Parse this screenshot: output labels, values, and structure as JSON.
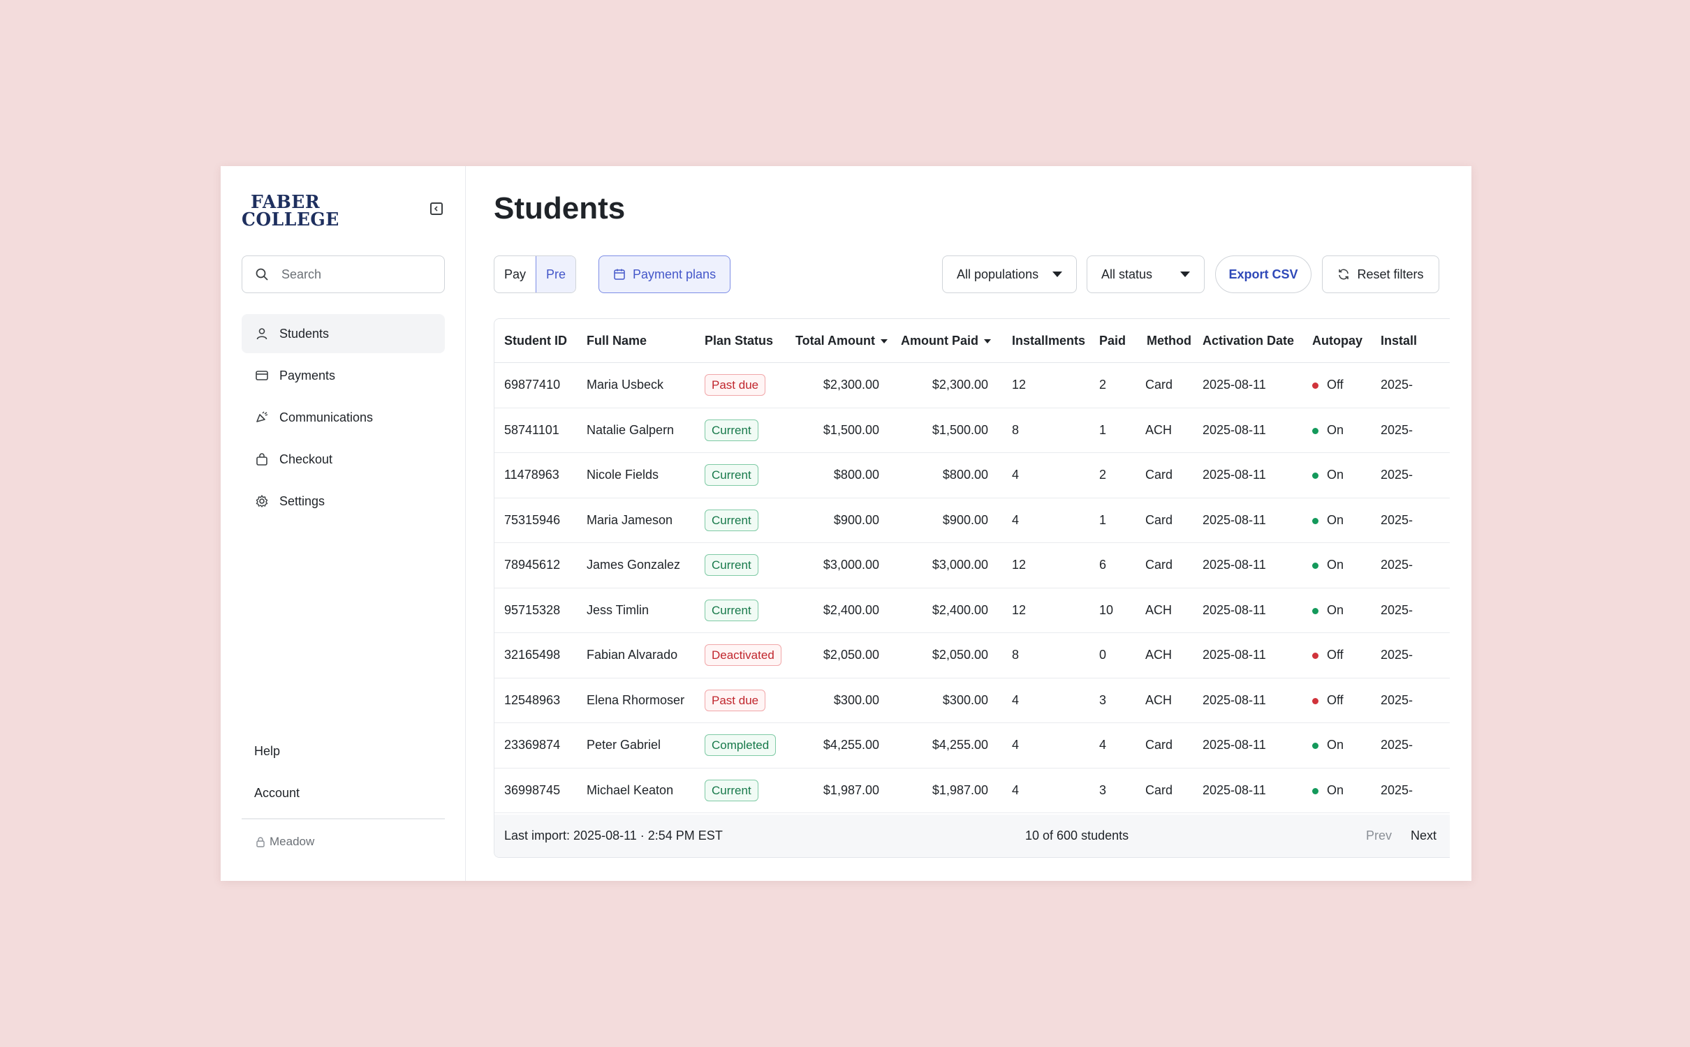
{
  "brand": {
    "logo_line1": "FABER",
    "logo_line2": "COLLEGE",
    "logo_color": "#1e2f5e"
  },
  "sidebar": {
    "search_placeholder": "Search",
    "nav": [
      {
        "label": "Students",
        "icon": "user-icon",
        "active": true
      },
      {
        "label": "Payments",
        "icon": "credit-card-icon"
      },
      {
        "label": "Communications",
        "icon": "megaphone-icon"
      },
      {
        "label": "Checkout",
        "icon": "shopping-bag-icon"
      },
      {
        "label": "Settings",
        "icon": "gear-icon"
      }
    ],
    "help": "Help",
    "account": "Account",
    "workspace": "Meadow"
  },
  "main": {
    "title": "Students",
    "segment": {
      "pay": "Pay",
      "pre": "Pre"
    },
    "plans_button": "Payment plans",
    "filter_population": "All populations",
    "filter_status": "All status",
    "export": "Export CSV",
    "reset": "Reset filters"
  },
  "table": {
    "columns": [
      "Student ID",
      "Full Name",
      "Plan Status",
      "Total Amount",
      "Amount Paid",
      "Installments",
      "Paid",
      "Method",
      "Activation Date",
      "Autopay",
      "Install"
    ],
    "rows": [
      {
        "id": "69877410",
        "name": "Maria Usbeck",
        "status": "Past due",
        "total": "$2,300.00",
        "paid_amt": "$2,300.00",
        "inst": "12",
        "paid": "2",
        "method": "Card",
        "date": "2025-08-11",
        "autopay": "Off",
        "next": "2025-"
      },
      {
        "id": "58741101",
        "name": "Natalie Galpern",
        "status": "Current",
        "total": "$1,500.00",
        "paid_amt": "$1,500.00",
        "inst": "8",
        "paid": "1",
        "method": "ACH",
        "date": "2025-08-11",
        "autopay": "On",
        "next": "2025-"
      },
      {
        "id": "11478963",
        "name": "Nicole Fields",
        "status": "Current",
        "total": "$800.00",
        "paid_amt": "$800.00",
        "inst": "4",
        "paid": "2",
        "method": "Card",
        "date": "2025-08-11",
        "autopay": "On",
        "next": "2025-"
      },
      {
        "id": "75315946",
        "name": "Maria Jameson",
        "status": "Current",
        "total": "$900.00",
        "paid_amt": "$900.00",
        "inst": "4",
        "paid": "1",
        "method": "Card",
        "date": "2025-08-11",
        "autopay": "On",
        "next": "2025-"
      },
      {
        "id": "78945612",
        "name": "James Gonzalez",
        "status": "Current",
        "total": "$3,000.00",
        "paid_amt": "$3,000.00",
        "inst": "12",
        "paid": "6",
        "method": "Card",
        "date": "2025-08-11",
        "autopay": "On",
        "next": "2025-"
      },
      {
        "id": "95715328",
        "name": "Jess Timlin",
        "status": "Current",
        "total": "$2,400.00",
        "paid_amt": "$2,400.00",
        "inst": "12",
        "paid": "10",
        "method": "ACH",
        "date": "2025-08-11",
        "autopay": "On",
        "next": "2025-"
      },
      {
        "id": "32165498",
        "name": "Fabian Alvarado",
        "status": "Deactivated",
        "total": "$2,050.00",
        "paid_amt": "$2,050.00",
        "inst": "8",
        "paid": "0",
        "method": "ACH",
        "date": "2025-08-11",
        "autopay": "Off",
        "next": "2025-"
      },
      {
        "id": "12548963",
        "name": "Elena Rhormoser",
        "status": "Past due",
        "total": "$300.00",
        "paid_amt": "$300.00",
        "inst": "4",
        "paid": "3",
        "method": "ACH",
        "date": "2025-08-11",
        "autopay": "Off",
        "next": "2025-"
      },
      {
        "id": "23369874",
        "name": "Peter Gabriel",
        "status": "Completed",
        "total": "$4,255.00",
        "paid_amt": "$4,255.00",
        "inst": "4",
        "paid": "4",
        "method": "Card",
        "date": "2025-08-11",
        "autopay": "On",
        "next": "2025-"
      },
      {
        "id": "36998745",
        "name": "Michael Keaton",
        "status": "Current",
        "total": "$1,987.00",
        "paid_amt": "$1,987.00",
        "inst": "4",
        "paid": "3",
        "method": "Card",
        "date": "2025-08-11",
        "autopay": "On",
        "next": "2025-"
      }
    ],
    "footer": {
      "last_import": "Last import: 2025-08-11 · 2:54 PM EST",
      "count": "10 of 600 students",
      "prev": "Prev",
      "next": "Next"
    }
  },
  "colors": {
    "accent": "#4457c9",
    "status_red": "#c0262d",
    "status_green": "#17794a"
  }
}
